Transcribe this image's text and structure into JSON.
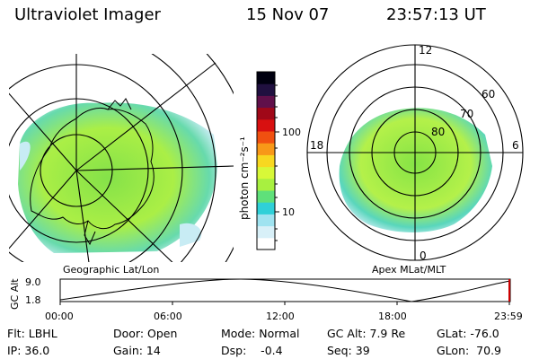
{
  "header": {
    "instrument": "Ultraviolet Imager",
    "date": "15 Nov 07",
    "time": "23:57:13 UT"
  },
  "left_map": {
    "caption": "Geographic Lat/Lon"
  },
  "right_map": {
    "caption": "Apex MLat/MLT",
    "lat_labels": [
      "80",
      "70",
      "60"
    ],
    "mlt_labels": {
      "top": "12",
      "left": "18",
      "right": "6",
      "bottom": "0"
    }
  },
  "colorbar": {
    "unit_label": "photon cm⁻²s⁻¹",
    "ticks": [
      "100",
      "10"
    ],
    "colors": [
      "#ffffff",
      "#d8f0f8",
      "#9fe3f0",
      "#2fd0d8",
      "#5fe07a",
      "#a8f040",
      "#d8f838",
      "#f8d820",
      "#f89818",
      "#f05010",
      "#d81010",
      "#a00818",
      "#60104a",
      "#201040",
      "#000010"
    ]
  },
  "altitude_plot": {
    "ylabel": "GC Alt",
    "ymax": "9.0",
    "ymin": "1.8",
    "x_ticks": [
      "00:00",
      "06:00",
      "12:00",
      "18:00",
      "23:59"
    ]
  },
  "status": {
    "flt": "Flt: LBHL",
    "ip": "IP: 36.0",
    "door": "Door: Open",
    "gain": "Gain: 14",
    "mode": "Mode: Normal",
    "dsp": "Dsp:    -0.4",
    "gc_alt": "GC Alt: 7.9 Re",
    "seq": "Seq: 39",
    "glat": "GLat: -76.0",
    "glon": "GLon:  70.9"
  },
  "accent": {
    "marker": "#cc0000",
    "line": "#000000"
  }
}
